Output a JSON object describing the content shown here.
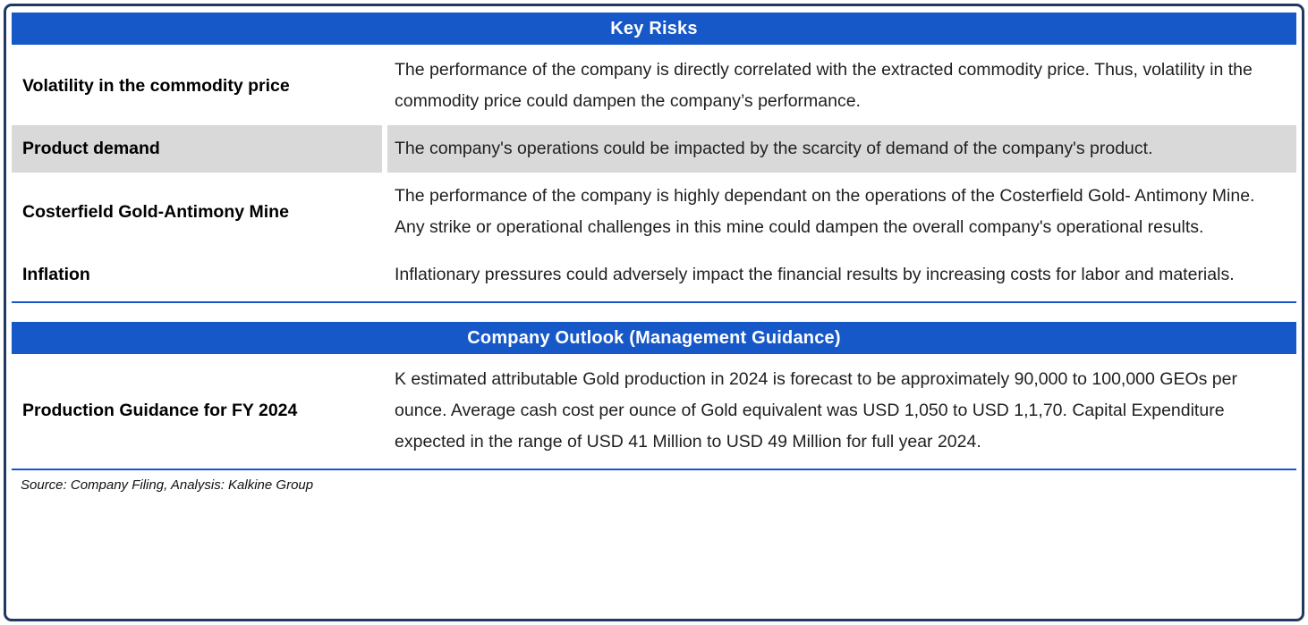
{
  "colors": {
    "header_blue": "#1658C8",
    "row_gray": "#D9D9D9",
    "border_navy": "#1F3864"
  },
  "key_risks": {
    "title": "Key Risks",
    "rows": [
      {
        "label": "Volatility in the commodity price",
        "text": "The performance of the company is directly correlated with the extracted commodity price. Thus, volatility in the commodity price could dampen the company’s performance."
      },
      {
        "label": "Product demand",
        "text": "The company's operations could be impacted by the scarcity of demand of the company's product."
      },
      {
        "label": "Costerfield Gold-Antimony Mine",
        "text": "The performance of the company is highly dependant on the operations of the Costerfield Gold- Antimony Mine. Any strike or operational challenges in this mine could dampen the overall company's operational results."
      },
      {
        "label": "Inflation",
        "text": "Inflationary pressures could adversely impact the financial results by increasing costs for labor and materials."
      }
    ]
  },
  "outlook": {
    "title": "Company Outlook (Management Guidance)",
    "rows": [
      {
        "label": "Production Guidance for  FY 2024",
        "text": "K estimated attributable Gold production in 2024 is forecast to be approximately 90,000 to 100,000 GEOs per ounce. Average cash cost per ounce of Gold equivalent was USD 1,050 to USD 1,1,70. Capital Expenditure expected in the range of USD 41 Million to USD 49 Million for full year 2024."
      }
    ]
  },
  "source": "Source: Company Filing, Analysis: Kalkine Group"
}
